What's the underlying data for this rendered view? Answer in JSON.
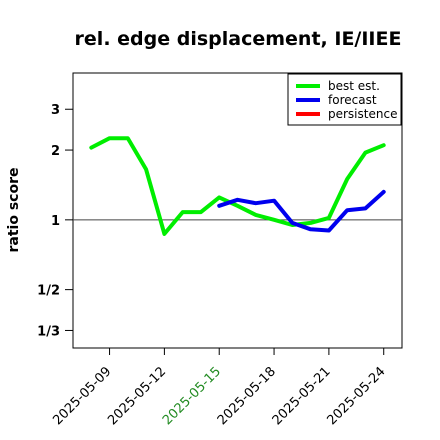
{
  "chart_data": {
    "type": "line",
    "title": "rel. edge displacement, IE/IIEE",
    "xlabel": "",
    "ylabel": "ratio score",
    "x_dates": [
      "2025-05-08",
      "2025-05-09",
      "2025-05-10",
      "2025-05-11",
      "2025-05-12",
      "2025-05-13",
      "2025-05-14",
      "2025-05-15",
      "2025-05-16",
      "2025-05-17",
      "2025-05-18",
      "2025-05-19",
      "2025-05-20",
      "2025-05-21",
      "2025-05-22",
      "2025-05-23",
      "2025-05-24"
    ],
    "xlim": [
      "2025-05-07",
      "2025-05-25"
    ],
    "x_ticks": [
      {
        "label": "2025-05-09",
        "color": "#000000"
      },
      {
        "label": "2025-05-12",
        "color": "#000000"
      },
      {
        "label": "2025-05-15",
        "color": "#228B22"
      },
      {
        "label": "2025-05-18",
        "color": "#000000"
      },
      {
        "label": "2025-05-21",
        "color": "#000000"
      },
      {
        "label": "2025-05-24",
        "color": "#000000"
      }
    ],
    "y_scale": "log",
    "ylim": [
      0.28,
      4.3
    ],
    "y_ticks": [
      {
        "label": "1/3",
        "value": 0.3333
      },
      {
        "label": "1/2",
        "value": 0.5
      },
      {
        "label": "1",
        "value": 1
      },
      {
        "label": "2",
        "value": 2
      },
      {
        "label": "3",
        "value": 3
      }
    ],
    "reference_line": 1,
    "legend_position": "top-right",
    "series": [
      {
        "name": "best est.",
        "color": "#00ee00",
        "values": [
          2.05,
          2.25,
          2.25,
          1.65,
          0.87,
          1.08,
          1.08,
          1.25,
          1.15,
          1.05,
          1.0,
          0.95,
          0.97,
          1.02,
          1.5,
          1.95,
          2.1
        ]
      },
      {
        "name": "forecast",
        "color": "#0000ee",
        "values": [
          null,
          null,
          null,
          null,
          null,
          null,
          null,
          1.15,
          1.22,
          1.18,
          1.21,
          0.97,
          0.91,
          0.9,
          1.1,
          1.12,
          1.32
        ]
      },
      {
        "name": "persistence",
        "color": "#ff0000",
        "values": []
      }
    ]
  }
}
